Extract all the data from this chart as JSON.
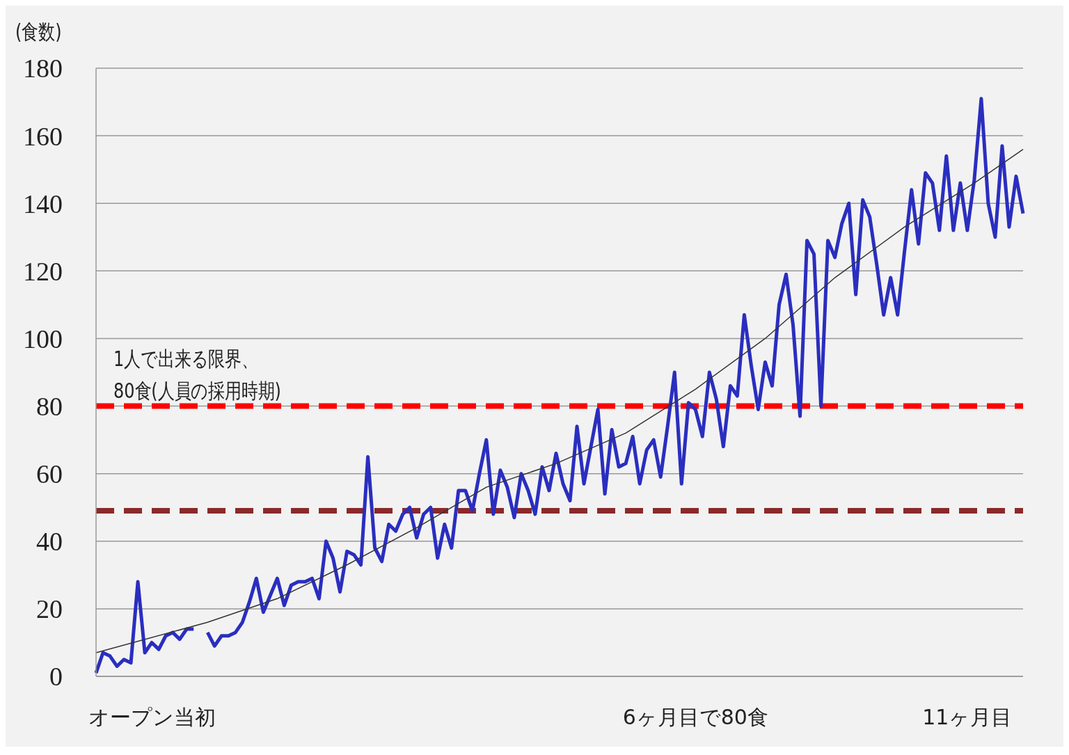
{
  "chart_data": {
    "type": "line",
    "ylabel": "(食数)",
    "categories": [
      null,
      null,
      null,
      null,
      null,
      null,
      null,
      null,
      "オープン当初",
      null,
      null,
      null,
      null,
      null,
      null,
      null,
      null,
      null,
      null,
      null,
      null,
      null,
      null,
      null,
      null,
      null,
      null,
      null,
      null,
      null,
      null,
      null,
      null,
      null,
      null,
      null,
      null,
      null,
      null,
      null,
      null,
      null,
      null,
      null,
      null,
      null,
      null,
      null,
      null,
      null,
      null,
      null,
      null,
      null,
      null,
      null,
      null,
      null,
      null,
      null,
      null,
      null,
      null,
      null,
      null,
      null,
      null,
      null,
      null,
      null,
      null,
      null,
      null,
      null,
      null,
      null,
      null,
      null,
      null,
      null,
      null,
      null,
      null,
      null,
      null,
      null,
      "6ヶ月目で80食",
      null,
      null,
      null,
      null,
      null,
      null,
      null,
      null,
      null,
      null,
      null,
      null,
      null,
      null,
      null,
      null,
      null,
      null,
      null,
      null,
      null,
      null,
      null,
      null,
      null,
      null,
      null,
      null,
      null,
      null,
      null,
      null,
      null,
      null,
      null,
      null,
      null,
      null,
      "11ヶ月目",
      null,
      null,
      null,
      null,
      null,
      null,
      null,
      null
    ],
    "series": [
      {
        "color": "#2a2ebf",
        "values": [
          1,
          7,
          6,
          3,
          5,
          4,
          28,
          7,
          10,
          8,
          12,
          13,
          11,
          14,
          14,
          null,
          13,
          9,
          12,
          12,
          13,
          16,
          22,
          29,
          19,
          24,
          29,
          21,
          27,
          28,
          28,
          29,
          23,
          40,
          35,
          25,
          37,
          36,
          33,
          65,
          38,
          34,
          45,
          43,
          48,
          50,
          41,
          48,
          50,
          35,
          45,
          38,
          55,
          55,
          49,
          60,
          70,
          48,
          61,
          56,
          47,
          60,
          55,
          48,
          62,
          55,
          66,
          57,
          52,
          74,
          57,
          68,
          79,
          54,
          73,
          62,
          63,
          71,
          57,
          67,
          70,
          59,
          74,
          90,
          57,
          81,
          79,
          71,
          90,
          82,
          68,
          86,
          83,
          107,
          92,
          79,
          93,
          86,
          110,
          119,
          104,
          77,
          129,
          125,
          80,
          129,
          124,
          134,
          140,
          113,
          141,
          136,
          122,
          107,
          118,
          107,
          126,
          144,
          128,
          149,
          146,
          132,
          154,
          132,
          146,
          132,
          147,
          171,
          140,
          130,
          157,
          133,
          148,
          137
        ]
      },
      {
        "color": "#333333",
        "values": [
          7,
          null,
          null,
          null,
          null,
          null,
          null,
          null,
          null,
          null,
          null,
          null,
          null,
          null,
          null,
          null,
          16,
          null,
          null,
          null,
          null,
          null,
          null,
          null,
          null,
          null,
          23,
          null,
          null,
          null,
          null,
          null,
          null,
          null,
          null,
          null,
          33,
          null,
          null,
          null,
          null,
          null,
          null,
          null,
          null,
          null,
          44,
          null,
          null,
          null,
          null,
          null,
          null,
          null,
          null,
          null,
          56,
          null,
          null,
          null,
          null,
          null,
          null,
          null,
          null,
          null,
          63,
          null,
          null,
          null,
          null,
          null,
          null,
          null,
          null,
          null,
          72,
          null,
          null,
          null,
          null,
          null,
          null,
          null,
          null,
          null,
          85,
          null,
          null,
          null,
          null,
          null,
          null,
          null,
          null,
          null,
          100,
          null,
          null,
          null,
          null,
          null,
          null,
          null,
          null,
          null,
          118,
          null,
          null,
          null,
          null,
          null,
          null,
          null,
          null,
          null,
          133,
          null,
          null,
          null,
          null,
          null,
          null,
          null,
          null,
          null,
          146,
          null,
          null,
          null,
          null,
          null,
          null,
          156
        ]
      }
    ],
    "ylim": [
      0,
      180
    ],
    "yticks": [
      0,
      20,
      40,
      60,
      80,
      100,
      120,
      140,
      160,
      180
    ],
    "grid": "y",
    "marker": "none",
    "ref_lines": [
      {
        "axis": "y",
        "value": 80,
        "label": "1人で出来る限界、\n80食(人員の採用時期)",
        "color": "#ff0000",
        "line_style": "dashed"
      },
      {
        "axis": "y",
        "value": 49,
        "color": "#8b2a2a",
        "line_style": "dashed"
      }
    ]
  }
}
